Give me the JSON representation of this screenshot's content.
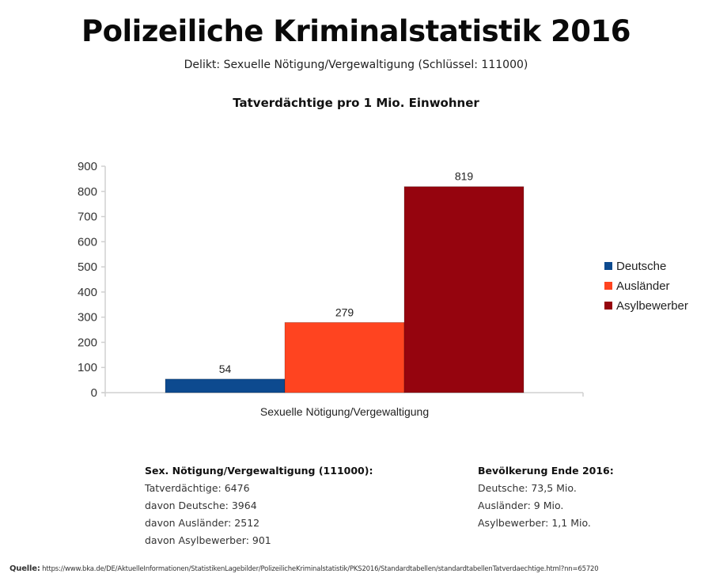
{
  "header": {
    "title": "Polizeiliche Kriminalstatistik 2016",
    "subtitle": "Delikt: Sexuelle Nötigung/Vergewaltigung (Schlüssel: 111000)"
  },
  "chart_data": {
    "type": "bar",
    "title": "Tatverdächtige pro 1 Mio. Einwohner",
    "xlabel": "",
    "ylabel": "",
    "categories": [
      "Sexuelle Nötigung/Vergewaltigung"
    ],
    "series": [
      {
        "name": "Deutsche",
        "values": [
          54
        ],
        "color": "#0D4A8F"
      },
      {
        "name": "Ausländer",
        "values": [
          279
        ],
        "color": "#FF4420"
      },
      {
        "name": "Asylbewerber",
        "values": [
          819
        ],
        "color": "#95040E"
      }
    ],
    "ylim": [
      0,
      900
    ],
    "yticks": [
      0,
      100,
      200,
      300,
      400,
      500,
      600,
      700,
      800,
      900
    ],
    "data_labels": true,
    "grid": false,
    "legend": "right"
  },
  "info_left": {
    "heading": "Sex. Nötigung/Vergewaltigung (111000):",
    "lines": [
      "Tatverdächtige: 6476",
      "davon Deutsche: 3964",
      "davon Ausländer: 2512",
      "davon Asylbewerber: 901"
    ]
  },
  "info_right": {
    "heading": "Bevölkerung Ende 2016:",
    "lines": [
      "Deutsche: 73,5 Mio.",
      "Ausländer: 9 Mio.",
      "Asylbewerber: 1,1 Mio."
    ]
  },
  "source": {
    "label": "Quelle:",
    "url": "https://www.bka.de/DE/AktuelleInformationen/StatistikenLagebilder/PolizeilicheKriminalstatistik/PKS2016/Standardtabellen/standardtabellenTatverdaechtige.html?nn=65720"
  }
}
